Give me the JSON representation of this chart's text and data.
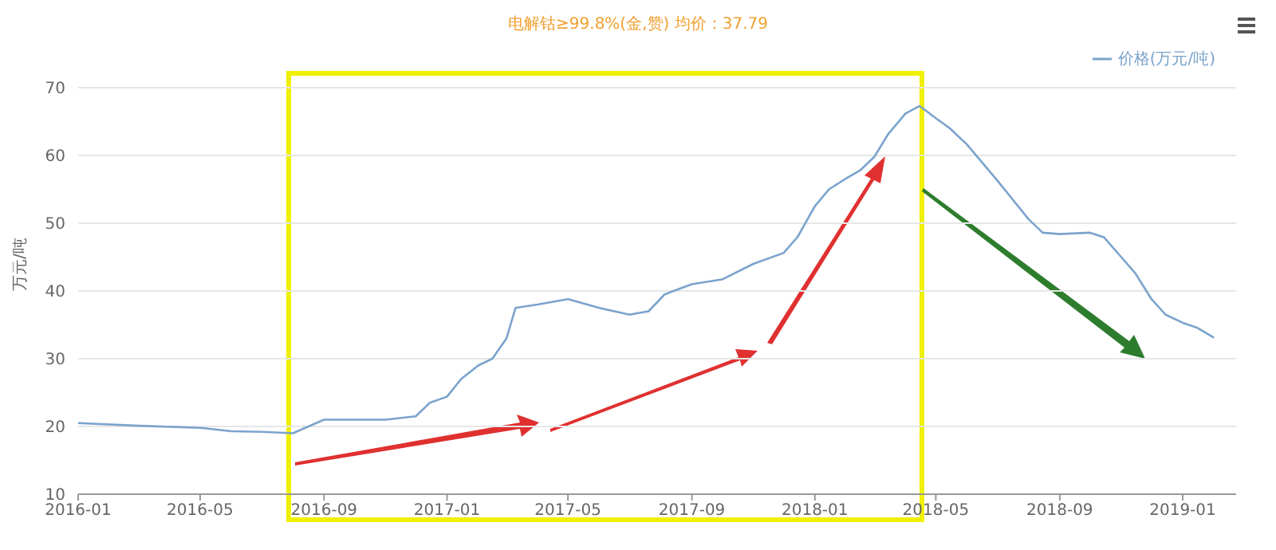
{
  "chart_data": {
    "type": "line",
    "title": "电解钴≥99.8%(金,赞) 均价：37.79",
    "ylabel": "万元/吨",
    "x": [
      "2016-01-01",
      "2016-03-01",
      "2016-05-01",
      "2016-06-01",
      "2016-07-01",
      "2016-08-01",
      "2016-09-01",
      "2016-11-01",
      "2016-12-01",
      "2016-12-15",
      "2017-01-01",
      "2017-01-15",
      "2017-02-01",
      "2017-02-15",
      "2017-03-01",
      "2017-03-10",
      "2017-04-01",
      "2017-05-01",
      "2017-06-01",
      "2017-07-01",
      "2017-07-20",
      "2017-08-05",
      "2017-09-01",
      "2017-10-01",
      "2017-11-01",
      "2017-12-01",
      "2017-12-15",
      "2018-01-01",
      "2018-01-15",
      "2018-02-01",
      "2018-02-15",
      "2018-03-01",
      "2018-03-15",
      "2018-04-01",
      "2018-04-15",
      "2018-05-01",
      "2018-05-15",
      "2018-06-01",
      "2018-07-01",
      "2018-08-01",
      "2018-08-15",
      "2018-09-01",
      "2018-10-01",
      "2018-10-15",
      "2018-11-01",
      "2018-11-15",
      "2018-12-01",
      "2018-12-15",
      "2019-01-01",
      "2019-01-15",
      "2019-02-01"
    ],
    "series": [
      {
        "name": "价格(万元/吨)",
        "color": "#7ba3cc",
        "values": [
          20.5,
          20.1,
          19.8,
          19.3,
          19.2,
          19.0,
          21,
          21,
          21.5,
          23.5,
          24.4,
          27,
          29,
          30,
          33,
          37.5,
          38,
          38.8,
          37.5,
          36.5,
          37,
          39.5,
          41,
          41.7,
          44,
          45.6,
          48,
          52.5,
          55,
          56.6,
          57.8,
          59.8,
          63.2,
          66.2,
          67.3,
          65.5,
          64,
          61.6,
          56.3,
          50.6,
          48.6,
          48.4,
          48.6,
          47.9,
          45,
          42.6,
          38.8,
          36.5,
          35.3,
          34.6,
          33.1
        ]
      }
    ],
    "xlim": [
      "2016-01-01",
      "2019-02-23"
    ],
    "xticks": [
      {
        "value": "2016-01-01",
        "label": "2016-01"
      },
      {
        "value": "2016-05-01",
        "label": "2016-05"
      },
      {
        "value": "2016-09-01",
        "label": "2016-09"
      },
      {
        "value": "2017-01-01",
        "label": "2017-01"
      },
      {
        "value": "2017-05-01",
        "label": "2017-05"
      },
      {
        "value": "2017-09-01",
        "label": "2017-09"
      },
      {
        "value": "2018-01-01",
        "label": "2018-01"
      },
      {
        "value": "2018-05-01",
        "label": "2018-05"
      },
      {
        "value": "2018-09-01",
        "label": "2018-09"
      },
      {
        "value": "2019-01-01",
        "label": "2019-01"
      }
    ],
    "ylim": [
      10,
      70
    ],
    "yticks": [
      10,
      20,
      30,
      40,
      50,
      60,
      70
    ],
    "grid": "y",
    "legend": "top right",
    "marker": "none",
    "line_style": "solid"
  }
}
